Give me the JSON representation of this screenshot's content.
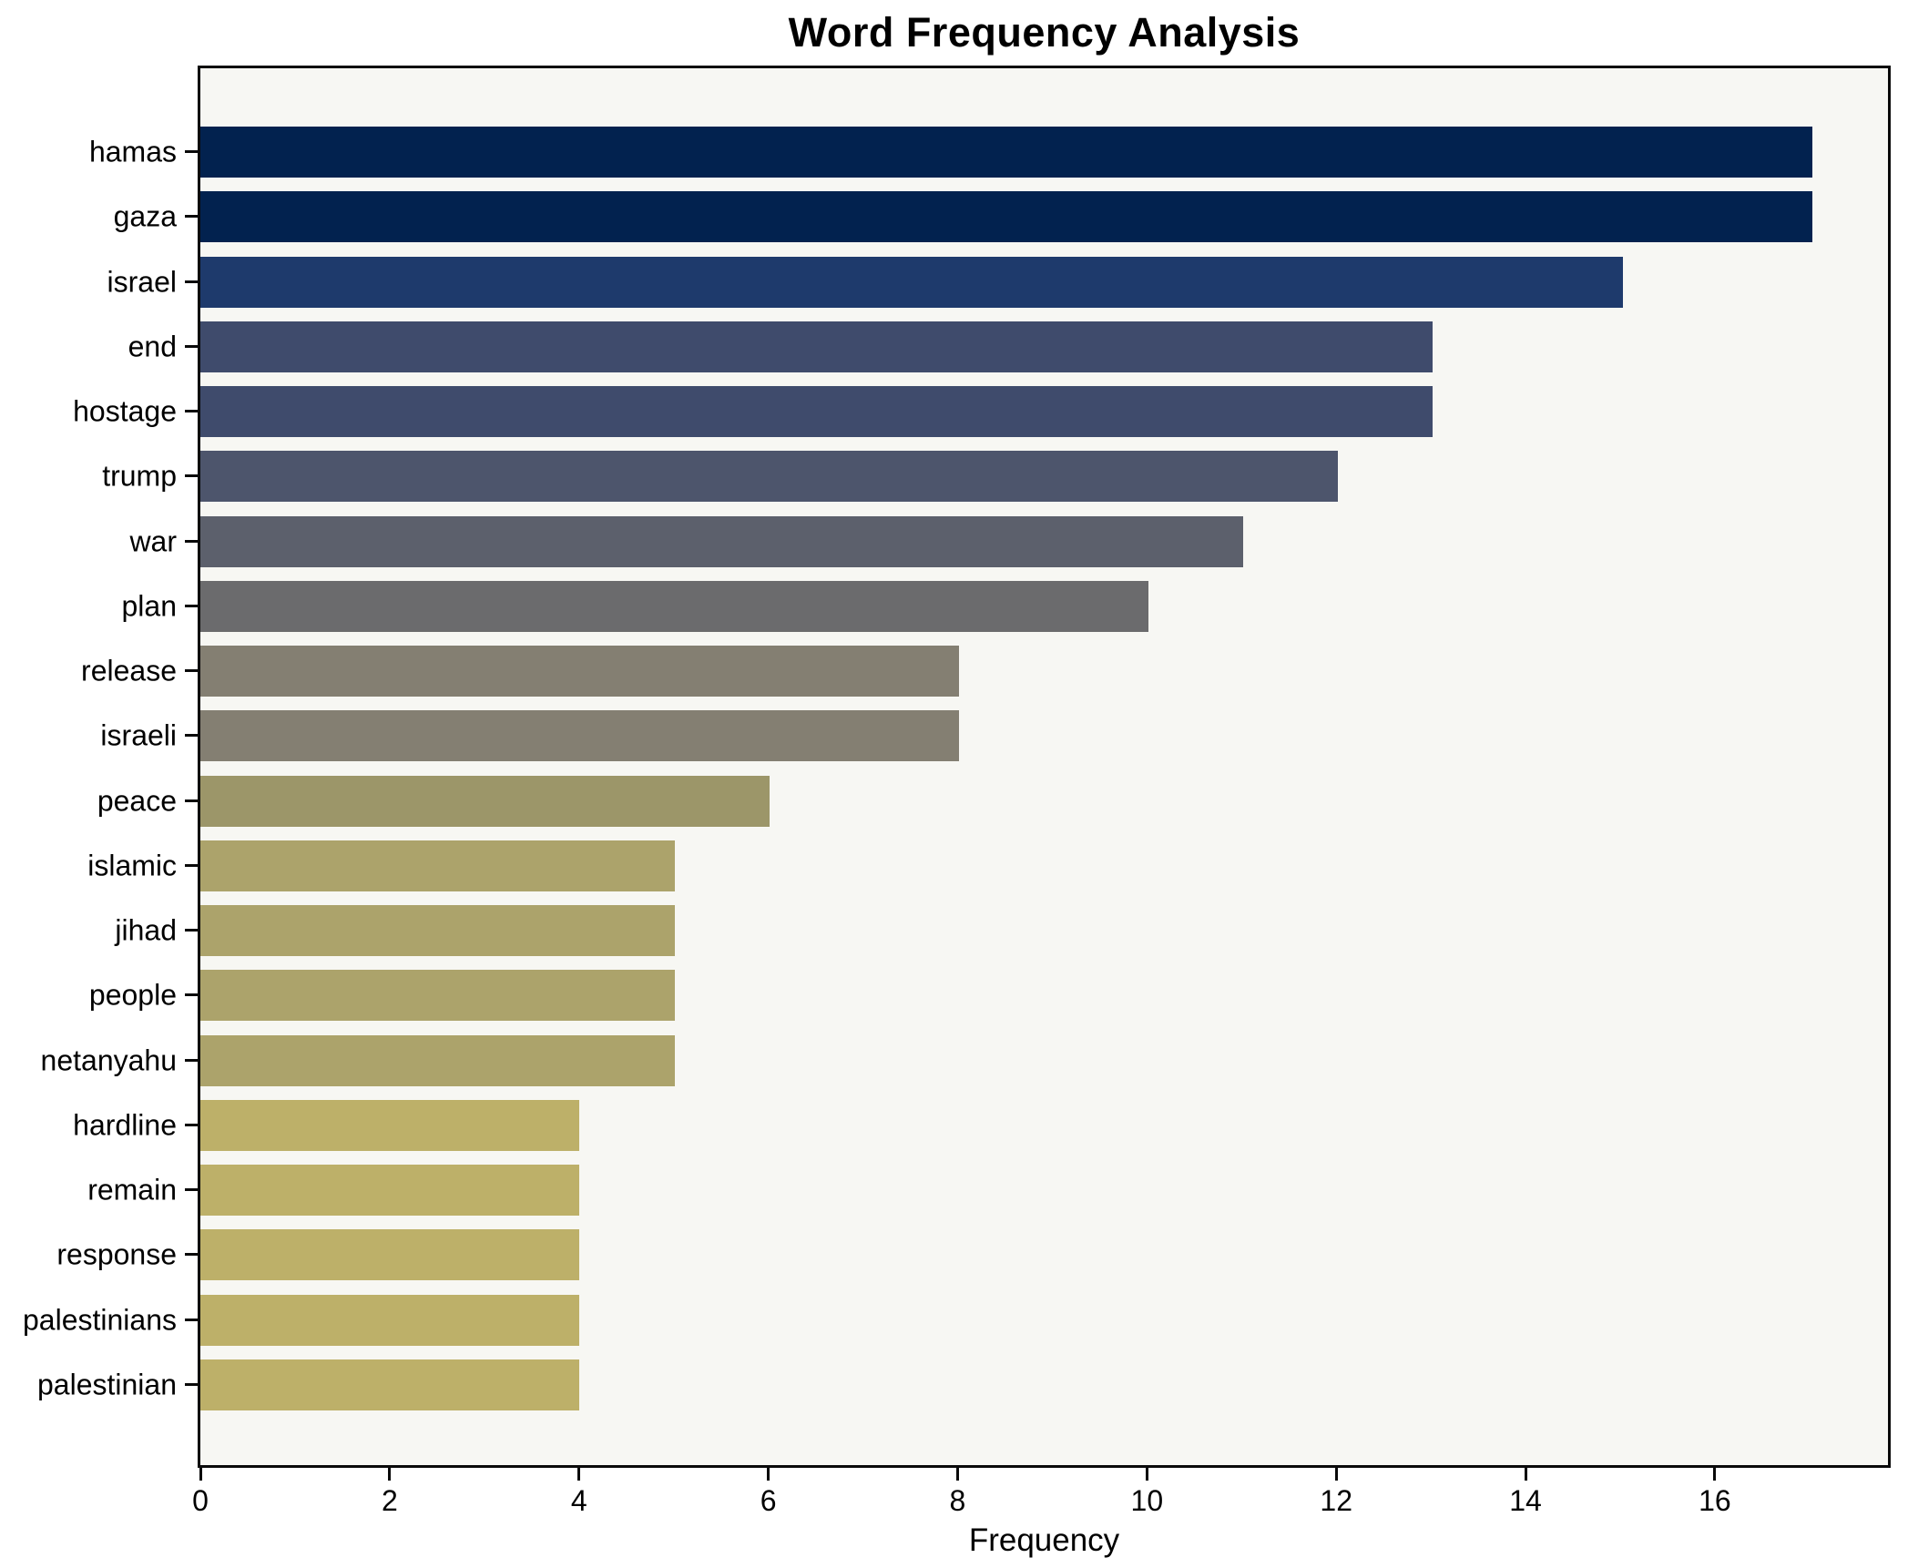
{
  "chart_data": {
    "type": "bar",
    "orientation": "horizontal",
    "title": "Word Frequency Analysis",
    "xlabel": "Frequency",
    "ylabel": "",
    "xlim": [
      0,
      17.8
    ],
    "x_ticks": [
      0,
      2,
      4,
      6,
      8,
      10,
      12,
      14,
      16
    ],
    "grid": false,
    "legend": "none",
    "figure_background": "#ffffff",
    "plot_background": "#f7f7f3",
    "axis_color": "#0a0a0a",
    "categories": [
      "hamas",
      "gaza",
      "israel",
      "end",
      "hostage",
      "trump",
      "war",
      "plan",
      "release",
      "israeli",
      "peace",
      "islamic",
      "jihad",
      "people",
      "netanyahu",
      "hardline",
      "remain",
      "response",
      "palestinians",
      "palestinian"
    ],
    "values": [
      17,
      17,
      15,
      13,
      13,
      12,
      11,
      10,
      8,
      8,
      6,
      5,
      5,
      5,
      5,
      4,
      4,
      4,
      4,
      4
    ],
    "bar_colors": [
      "#02224f",
      "#02224f",
      "#1e3a6c",
      "#3f4b6c",
      "#3f4b6c",
      "#4d556c",
      "#5c606c",
      "#6b6b6d",
      "#847f72",
      "#847f72",
      "#9c9669",
      "#aca36b",
      "#aca36b",
      "#aca36b",
      "#aca36b",
      "#bdb069",
      "#bdb069",
      "#bdb069",
      "#bdb069",
      "#bdb069"
    ]
  }
}
